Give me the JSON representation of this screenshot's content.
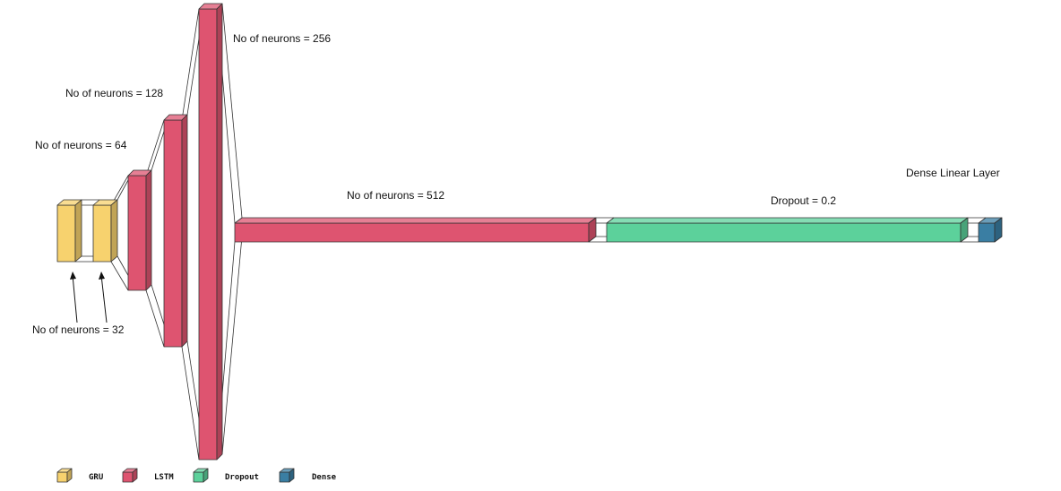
{
  "colors": {
    "gru": "#f7d26e",
    "lstm": "#de5470",
    "dropout": "#5cd19b",
    "dense": "#3a7ea3",
    "edge": "#333333"
  },
  "annotations": {
    "gru_neurons": "No of neurons  = 32",
    "lstm1_neurons": "No of neurons  = 64",
    "lstm2_neurons": "No of neurons  = 128",
    "lstm3_neurons": "No of neurons  = 256",
    "lstm4_neurons": "No of neurons  = 512",
    "dropout_rate": "Dropout = 0.2",
    "dense_layer": "Dense Linear Layer"
  },
  "layers": [
    {
      "type": "GRU",
      "name": "gru-1",
      "neurons": 32
    },
    {
      "type": "GRU",
      "name": "gru-2",
      "neurons": 32
    },
    {
      "type": "LSTM",
      "name": "lstm-1",
      "neurons": 64
    },
    {
      "type": "LSTM",
      "name": "lstm-2",
      "neurons": 128
    },
    {
      "type": "LSTM",
      "name": "lstm-3",
      "neurons": 256
    },
    {
      "type": "LSTM",
      "name": "lstm-4",
      "neurons": 512
    },
    {
      "type": "Dropout",
      "name": "dropout",
      "rate": 0.2
    },
    {
      "type": "Dense",
      "name": "dense"
    }
  ],
  "legend": [
    {
      "label": "GRU",
      "color_key": "gru",
      "icon": "gru-cube-icon"
    },
    {
      "label": "LSTM",
      "color_key": "lstm",
      "icon": "lstm-cube-icon"
    },
    {
      "label": "Dropout",
      "color_key": "dropout",
      "icon": "dropout-cube-icon"
    },
    {
      "label": "Dense",
      "color_key": "dense",
      "icon": "dense-cube-icon"
    }
  ]
}
